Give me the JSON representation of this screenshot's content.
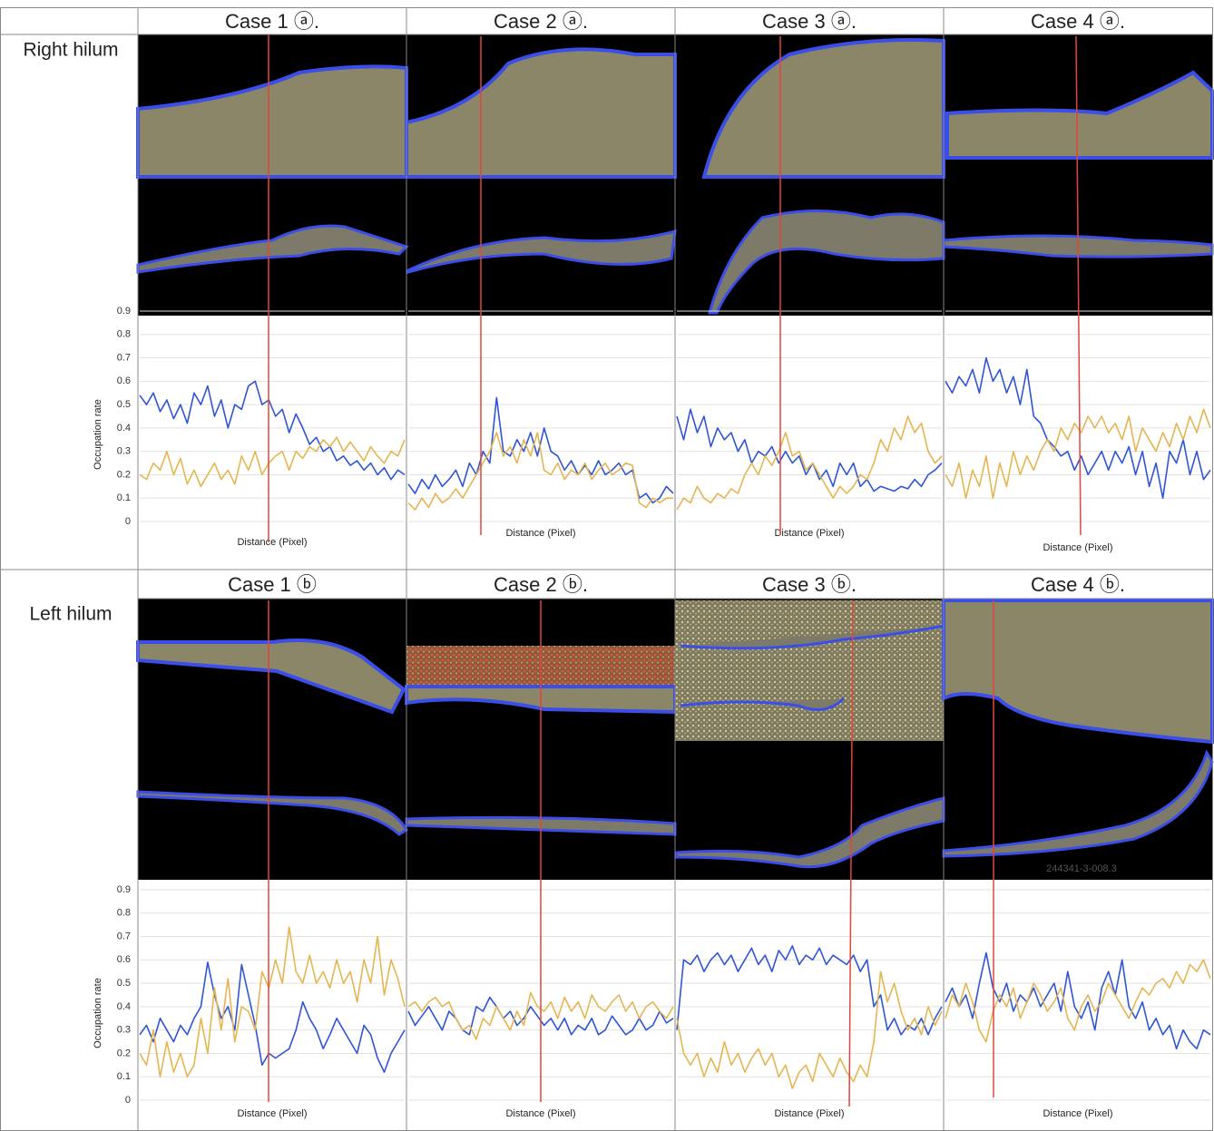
{
  "table": {
    "row_labels": [
      "Right  hilum",
      "Left hilum"
    ],
    "headers_top": [
      "Case 1 ⓐ.",
      "Case 2 ⓐ.",
      "Case 3 ⓐ.",
      "Case 4 ⓐ."
    ],
    "headers_bottom": [
      "Case 1 ⓑ",
      "Case 2 ⓑ.",
      "Case 3 ⓑ.",
      "Case 4 ⓑ."
    ]
  },
  "images": {
    "watermark": "244341-3-008.3"
  },
  "chart_data": [
    {
      "type": "line",
      "y_label": "Occupation rate",
      "x_label": "Distance (Pixel)",
      "ylim": [
        0,
        0.9
      ],
      "yticks": [
        0,
        0.1,
        0.2,
        0.3,
        0.4,
        0.5,
        0.6,
        0.7,
        0.8,
        0.9
      ],
      "grid": true,
      "series": [
        {
          "color": "#2f55d4",
          "values": [
            0.54,
            0.5,
            0.55,
            0.47,
            0.52,
            0.44,
            0.5,
            0.42,
            0.55,
            0.5,
            0.58,
            0.45,
            0.52,
            0.4,
            0.5,
            0.48,
            0.58,
            0.6,
            0.5,
            0.52,
            0.45,
            0.48,
            0.38,
            0.46,
            0.4,
            0.33,
            0.36,
            0.3,
            0.32,
            0.26,
            0.28,
            0.24,
            0.26,
            0.22,
            0.25,
            0.2,
            0.23,
            0.18,
            0.22,
            0.2
          ]
        },
        {
          "color": "#e6b552",
          "values": [
            0.2,
            0.18,
            0.25,
            0.22,
            0.3,
            0.2,
            0.27,
            0.16,
            0.22,
            0.15,
            0.2,
            0.25,
            0.18,
            0.22,
            0.16,
            0.28,
            0.22,
            0.3,
            0.2,
            0.25,
            0.28,
            0.3,
            0.22,
            0.3,
            0.27,
            0.32,
            0.3,
            0.35,
            0.32,
            0.36,
            0.3,
            0.34,
            0.3,
            0.26,
            0.32,
            0.28,
            0.25,
            0.3,
            0.28,
            0.35
          ]
        }
      ]
    },
    {
      "type": "line",
      "x_label": "Distance (Pixel)",
      "ylim": [
        0,
        0.9
      ],
      "series": [
        {
          "color": "#2f55d4",
          "values": [
            0.16,
            0.12,
            0.18,
            0.14,
            0.2,
            0.15,
            0.18,
            0.22,
            0.15,
            0.25,
            0.2,
            0.3,
            0.25,
            0.53,
            0.3,
            0.28,
            0.35,
            0.3,
            0.38,
            0.28,
            0.4,
            0.3,
            0.28,
            0.22,
            0.26,
            0.2,
            0.24,
            0.2,
            0.26,
            0.2,
            0.22,
            0.25,
            0.2,
            0.22,
            0.1,
            0.12,
            0.08,
            0.1,
            0.15,
            0.12
          ]
        },
        {
          "color": "#e6b552",
          "values": [
            0.08,
            0.05,
            0.1,
            0.06,
            0.12,
            0.08,
            0.1,
            0.14,
            0.1,
            0.15,
            0.2,
            0.25,
            0.3,
            0.38,
            0.28,
            0.32,
            0.25,
            0.35,
            0.28,
            0.38,
            0.22,
            0.2,
            0.25,
            0.18,
            0.22,
            0.2,
            0.25,
            0.18,
            0.22,
            0.25,
            0.2,
            0.22,
            0.25,
            0.24,
            0.08,
            0.06,
            0.1,
            0.08,
            0.1,
            0.1
          ]
        }
      ]
    },
    {
      "type": "line",
      "x_label": "Distance (Pixel)",
      "ylim": [
        0,
        0.9
      ],
      "series": [
        {
          "color": "#2f55d4",
          "values": [
            0.45,
            0.35,
            0.48,
            0.38,
            0.45,
            0.32,
            0.4,
            0.35,
            0.38,
            0.3,
            0.35,
            0.25,
            0.3,
            0.28,
            0.32,
            0.25,
            0.3,
            0.25,
            0.28,
            0.2,
            0.25,
            0.18,
            0.22,
            0.15,
            0.25,
            0.2,
            0.25,
            0.15,
            0.18,
            0.13,
            0.15,
            0.14,
            0.13,
            0.15,
            0.14,
            0.18,
            0.15,
            0.2,
            0.22,
            0.25
          ]
        },
        {
          "color": "#e6b552",
          "values": [
            0.05,
            0.1,
            0.08,
            0.15,
            0.1,
            0.08,
            0.12,
            0.1,
            0.14,
            0.12,
            0.2,
            0.25,
            0.2,
            0.28,
            0.24,
            0.3,
            0.38,
            0.28,
            0.3,
            0.22,
            0.25,
            0.2,
            0.15,
            0.1,
            0.15,
            0.12,
            0.15,
            0.2,
            0.18,
            0.25,
            0.35,
            0.3,
            0.4,
            0.35,
            0.45,
            0.38,
            0.42,
            0.3,
            0.25,
            0.28
          ]
        }
      ]
    },
    {
      "type": "line",
      "x_label": "Distance (Pixel)",
      "ylim": [
        0,
        0.9
      ],
      "series": [
        {
          "color": "#2f55d4",
          "values": [
            0.6,
            0.55,
            0.62,
            0.58,
            0.65,
            0.55,
            0.7,
            0.6,
            0.65,
            0.55,
            0.62,
            0.5,
            0.65,
            0.45,
            0.42,
            0.35,
            0.32,
            0.28,
            0.3,
            0.22,
            0.28,
            0.2,
            0.25,
            0.3,
            0.22,
            0.3,
            0.25,
            0.32,
            0.2,
            0.3,
            0.15,
            0.25,
            0.1,
            0.3,
            0.25,
            0.35,
            0.2,
            0.3,
            0.18,
            0.22
          ]
        },
        {
          "color": "#e6b552",
          "values": [
            0.2,
            0.15,
            0.25,
            0.1,
            0.22,
            0.15,
            0.28,
            0.1,
            0.25,
            0.15,
            0.3,
            0.2,
            0.28,
            0.22,
            0.3,
            0.35,
            0.3,
            0.4,
            0.35,
            0.42,
            0.38,
            0.45,
            0.4,
            0.45,
            0.38,
            0.42,
            0.35,
            0.45,
            0.3,
            0.4,
            0.35,
            0.3,
            0.38,
            0.32,
            0.42,
            0.35,
            0.45,
            0.38,
            0.48,
            0.4
          ]
        }
      ]
    },
    {
      "type": "line",
      "y_label": "Occupation rate",
      "x_label": "Distance (Pixel)",
      "ylim": [
        0,
        0.9
      ],
      "yticks": [
        0,
        0.1,
        0.2,
        0.3,
        0.4,
        0.5,
        0.6,
        0.7,
        0.8,
        0.9
      ],
      "grid": true,
      "series": [
        {
          "color": "#2f55d4",
          "values": [
            0.28,
            0.32,
            0.25,
            0.35,
            0.3,
            0.25,
            0.32,
            0.28,
            0.35,
            0.4,
            0.59,
            0.45,
            0.35,
            0.4,
            0.3,
            0.58,
            0.45,
            0.32,
            0.15,
            0.2,
            0.18,
            0.2,
            0.22,
            0.3,
            0.42,
            0.35,
            0.3,
            0.22,
            0.28,
            0.35,
            0.3,
            0.25,
            0.2,
            0.32,
            0.28,
            0.18,
            0.12,
            0.2,
            0.25,
            0.3
          ]
        },
        {
          "color": "#e6b552",
          "values": [
            0.2,
            0.15,
            0.3,
            0.1,
            0.25,
            0.12,
            0.2,
            0.1,
            0.15,
            0.35,
            0.2,
            0.48,
            0.3,
            0.52,
            0.25,
            0.4,
            0.38,
            0.3,
            0.55,
            0.48,
            0.6,
            0.5,
            0.74,
            0.55,
            0.5,
            0.62,
            0.5,
            0.55,
            0.48,
            0.6,
            0.5,
            0.55,
            0.42,
            0.6,
            0.5,
            0.7,
            0.45,
            0.6,
            0.52,
            0.4
          ]
        }
      ]
    },
    {
      "type": "line",
      "x_label": "Distance (Pixel)",
      "ylim": [
        0,
        0.9
      ],
      "series": [
        {
          "color": "#2f55d4",
          "values": [
            0.38,
            0.32,
            0.36,
            0.4,
            0.35,
            0.3,
            0.38,
            0.35,
            0.3,
            0.28,
            0.4,
            0.38,
            0.44,
            0.4,
            0.35,
            0.38,
            0.32,
            0.35,
            0.4,
            0.36,
            0.32,
            0.35,
            0.3,
            0.35,
            0.28,
            0.32,
            0.3,
            0.35,
            0.28,
            0.3,
            0.36,
            0.32,
            0.28,
            0.3,
            0.35,
            0.3,
            0.32,
            0.38,
            0.33,
            0.35
          ]
        },
        {
          "color": "#e6b552",
          "values": [
            0.4,
            0.42,
            0.38,
            0.42,
            0.44,
            0.4,
            0.42,
            0.35,
            0.3,
            0.32,
            0.26,
            0.35,
            0.32,
            0.4,
            0.35,
            0.3,
            0.38,
            0.32,
            0.46,
            0.4,
            0.38,
            0.42,
            0.35,
            0.44,
            0.38,
            0.42,
            0.35,
            0.45,
            0.4,
            0.38,
            0.42,
            0.45,
            0.38,
            0.42,
            0.35,
            0.4,
            0.42,
            0.38,
            0.35,
            0.4
          ]
        }
      ]
    },
    {
      "type": "line",
      "x_label": "Distance (Pixel)",
      "ylim": [
        0,
        0.9
      ],
      "series": [
        {
          "color": "#2f55d4",
          "values": [
            0.3,
            0.6,
            0.58,
            0.62,
            0.55,
            0.6,
            0.63,
            0.58,
            0.62,
            0.55,
            0.6,
            0.65,
            0.58,
            0.62,
            0.55,
            0.64,
            0.6,
            0.66,
            0.58,
            0.62,
            0.6,
            0.65,
            0.58,
            0.62,
            0.6,
            0.58,
            0.62,
            0.55,
            0.6,
            0.4,
            0.45,
            0.3,
            0.35,
            0.28,
            0.32,
            0.3,
            0.35,
            0.28,
            0.35,
            0.4
          ]
        },
        {
          "color": "#e6b552",
          "values": [
            0.35,
            0.2,
            0.15,
            0.2,
            0.1,
            0.18,
            0.12,
            0.25,
            0.15,
            0.2,
            0.12,
            0.18,
            0.22,
            0.15,
            0.2,
            0.1,
            0.15,
            0.05,
            0.12,
            0.15,
            0.08,
            0.2,
            0.15,
            0.1,
            0.18,
            0.12,
            0.08,
            0.15,
            0.1,
            0.25,
            0.55,
            0.42,
            0.5,
            0.38,
            0.3,
            0.35,
            0.28,
            0.4,
            0.32,
            0.38
          ]
        }
      ]
    },
    {
      "type": "line",
      "x_label": "Distance (Pixel)",
      "ylim": [
        0,
        0.9
      ],
      "series": [
        {
          "color": "#2f55d4",
          "values": [
            0.42,
            0.48,
            0.4,
            0.45,
            0.35,
            0.5,
            0.63,
            0.48,
            0.42,
            0.5,
            0.38,
            0.45,
            0.42,
            0.48,
            0.4,
            0.45,
            0.5,
            0.38,
            0.55,
            0.4,
            0.35,
            0.42,
            0.3,
            0.48,
            0.55,
            0.45,
            0.6,
            0.4,
            0.35,
            0.42,
            0.3,
            0.35,
            0.28,
            0.32,
            0.22,
            0.3,
            0.25,
            0.22,
            0.3,
            0.28
          ]
        },
        {
          "color": "#e6b552",
          "values": [
            0.35,
            0.45,
            0.4,
            0.5,
            0.42,
            0.3,
            0.25,
            0.38,
            0.45,
            0.4,
            0.48,
            0.35,
            0.42,
            0.5,
            0.45,
            0.38,
            0.42,
            0.48,
            0.35,
            0.3,
            0.4,
            0.45,
            0.38,
            0.42,
            0.5,
            0.45,
            0.4,
            0.35,
            0.42,
            0.48,
            0.45,
            0.5,
            0.52,
            0.48,
            0.55,
            0.5,
            0.58,
            0.55,
            0.6,
            0.52
          ]
        }
      ]
    }
  ]
}
